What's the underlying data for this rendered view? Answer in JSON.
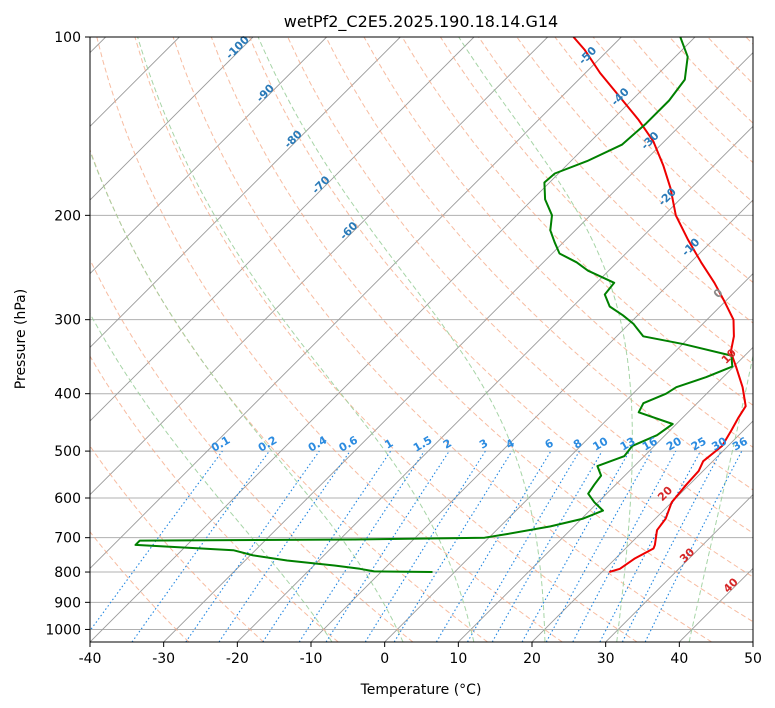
{
  "chart_data": {
    "type": "line",
    "diagram": "skew-t log-p",
    "title": "wetPf2_C2E5.2025.190.18.14.G14",
    "xlabel": "Temperature (°C)",
    "ylabel": "Pressure (hPa)",
    "xlim": [
      -40,
      50
    ],
    "ylim": [
      1050,
      100
    ],
    "y_scale": "log",
    "grid": true,
    "x_ticks": [
      -40,
      -30,
      -20,
      -10,
      0,
      10,
      20,
      30,
      40,
      50
    ],
    "y_ticks": [
      100,
      200,
      300,
      400,
      500,
      600,
      700,
      800,
      900,
      1000
    ],
    "colors": {
      "temperature": "#ee0000",
      "dewpoint": "#008000",
      "isotherm": "#9a9a9a",
      "dry_adiabat": "#f4a582",
      "moist_adiabat": "#9ccf9c",
      "mixing_ratio": "#1f85e0",
      "mixing_ratio_label": "#2b8be0",
      "isotherm_label_cold": "#2a7ab8",
      "isotherm_label_zero": "#888888",
      "isotherm_label_warm": "#d62728"
    },
    "series": [
      {
        "key": "temperature",
        "points": [
          {
            "p": 800,
            "t": 21.0
          },
          {
            "p": 790,
            "t": 22.0
          },
          {
            "p": 760,
            "t": 22.6
          },
          {
            "p": 730,
            "t": 23.8
          },
          {
            "p": 720,
            "t": 23.5
          },
          {
            "p": 680,
            "t": 21.8
          },
          {
            "p": 650,
            "t": 21.4
          },
          {
            "p": 610,
            "t": 20.0
          },
          {
            "p": 570,
            "t": 19.6
          },
          {
            "p": 540,
            "t": 19.4
          },
          {
            "p": 520,
            "t": 18.7
          },
          {
            "p": 490,
            "t": 19.2
          },
          {
            "p": 460,
            "t": 18.3
          },
          {
            "p": 440,
            "t": 17.6
          },
          {
            "p": 420,
            "t": 17.0
          },
          {
            "p": 390,
            "t": 14.0
          },
          {
            "p": 360,
            "t": 10.3
          },
          {
            "p": 340,
            "t": 7.6
          },
          {
            "p": 320,
            "t": 5.9
          },
          {
            "p": 300,
            "t": 3.6
          },
          {
            "p": 280,
            "t": 0.0
          },
          {
            "p": 260,
            "t": -4.0
          },
          {
            "p": 240,
            "t": -8.6
          },
          {
            "p": 220,
            "t": -13.4
          },
          {
            "p": 200,
            "t": -18.4
          },
          {
            "p": 180,
            "t": -22.8
          },
          {
            "p": 165,
            "t": -26.8
          },
          {
            "p": 150,
            "t": -31.5
          },
          {
            "p": 138,
            "t": -36.4
          },
          {
            "p": 125,
            "t": -42.7
          },
          {
            "p": 115,
            "t": -48.0
          },
          {
            "p": 105,
            "t": -53.3
          },
          {
            "p": 100,
            "t": -56.5
          }
        ]
      },
      {
        "key": "dewpoint",
        "points": [
          {
            "p": 800,
            "t": -3.0
          },
          {
            "p": 798,
            "t": -11.0
          },
          {
            "p": 790,
            "t": -13.3
          },
          {
            "p": 780,
            "t": -17.2
          },
          {
            "p": 765,
            "t": -24.3
          },
          {
            "p": 750,
            "t": -29.6
          },
          {
            "p": 735,
            "t": -33.0
          },
          {
            "p": 725,
            "t": -42.1
          },
          {
            "p": 720,
            "t": -47.0
          },
          {
            "p": 708,
            "t": -47.0
          },
          {
            "p": 705,
            "t": -18.0
          },
          {
            "p": 700,
            "t": -0.6
          },
          {
            "p": 690,
            "t": 2.0
          },
          {
            "p": 670,
            "t": 6.8
          },
          {
            "p": 650,
            "t": 10.2
          },
          {
            "p": 630,
            "t": 11.8
          },
          {
            "p": 610,
            "t": 9.5
          },
          {
            "p": 590,
            "t": 7.5
          },
          {
            "p": 570,
            "t": 7.1
          },
          {
            "p": 550,
            "t": 6.8
          },
          {
            "p": 530,
            "t": 5.0
          },
          {
            "p": 510,
            "t": 7.3
          },
          {
            "p": 490,
            "t": 7.0
          },
          {
            "p": 470,
            "t": 8.9
          },
          {
            "p": 450,
            "t": 9.5
          },
          {
            "p": 430,
            "t": 3.3
          },
          {
            "p": 415,
            "t": 2.7
          },
          {
            "p": 400,
            "t": 4.5
          },
          {
            "p": 390,
            "t": 5.0
          },
          {
            "p": 375,
            "t": 7.7
          },
          {
            "p": 360,
            "t": 9.8
          },
          {
            "p": 345,
            "t": 8.2
          },
          {
            "p": 330,
            "t": 0.2
          },
          {
            "p": 320,
            "t": -6.4
          },
          {
            "p": 305,
            "t": -9.4
          },
          {
            "p": 295,
            "t": -12.0
          },
          {
            "p": 285,
            "t": -15.0
          },
          {
            "p": 272,
            "t": -17.3
          },
          {
            "p": 260,
            "t": -17.6
          },
          {
            "p": 248,
            "t": -22.8
          },
          {
            "p": 240,
            "t": -25.5
          },
          {
            "p": 232,
            "t": -29.0
          },
          {
            "p": 222,
            "t": -31.2
          },
          {
            "p": 212,
            "t": -33.4
          },
          {
            "p": 200,
            "t": -35.2
          },
          {
            "p": 188,
            "t": -38.3
          },
          {
            "p": 176,
            "t": -40.7
          },
          {
            "p": 170,
            "t": -40.5
          },
          {
            "p": 162,
            "t": -37.8
          },
          {
            "p": 152,
            "t": -35.3
          },
          {
            "p": 140,
            "t": -34.9
          },
          {
            "p": 128,
            "t": -34.9
          },
          {
            "p": 118,
            "t": -35.6
          },
          {
            "p": 108,
            "t": -38.3
          },
          {
            "p": 100,
            "t": -42.0
          }
        ]
      }
    ],
    "dry_adiabats": [
      -30,
      -20,
      -10,
      0,
      10,
      20,
      30,
      40,
      50,
      60,
      70,
      80,
      90,
      100,
      110,
      120,
      130,
      140,
      150,
      160,
      170,
      180,
      190,
      200,
      210,
      220
    ],
    "moist_adiabats": [
      -10,
      0,
      10,
      20,
      30,
      40
    ],
    "mixing_ratio": {
      "values": [
        0.1,
        0.2,
        0.4,
        0.6,
        1,
        1.5,
        2,
        3,
        4,
        6,
        8,
        10,
        13,
        16,
        20,
        25,
        30,
        36
      ],
      "labels": [
        "0.1",
        "0.2",
        "0.4",
        "0.6",
        "1",
        "1.5",
        "2",
        "3",
        "4",
        "6",
        "8",
        "10",
        "13",
        "16",
        "20",
        "25",
        "30",
        "36"
      ],
      "label_pressure": 500
    },
    "isotherm_labels": [
      {
        "text": "-100",
        "t": -100
      },
      {
        "text": "-90",
        "t": -90
      },
      {
        "text": "-80",
        "t": -80
      },
      {
        "text": "-70",
        "t": -70
      },
      {
        "text": "-60",
        "t": -60
      },
      {
        "text": "-50",
        "t": -50
      },
      {
        "text": "-40",
        "t": -40
      },
      {
        "text": "-30",
        "t": -30
      },
      {
        "text": "-20",
        "t": -20
      },
      {
        "text": "-10",
        "t": -10
      },
      {
        "text": "0",
        "t": 0
      },
      {
        "text": "10",
        "t": 10
      },
      {
        "text": "20",
        "t": 20
      },
      {
        "text": "30",
        "t": 30
      },
      {
        "text": "40",
        "t": 40
      }
    ]
  }
}
